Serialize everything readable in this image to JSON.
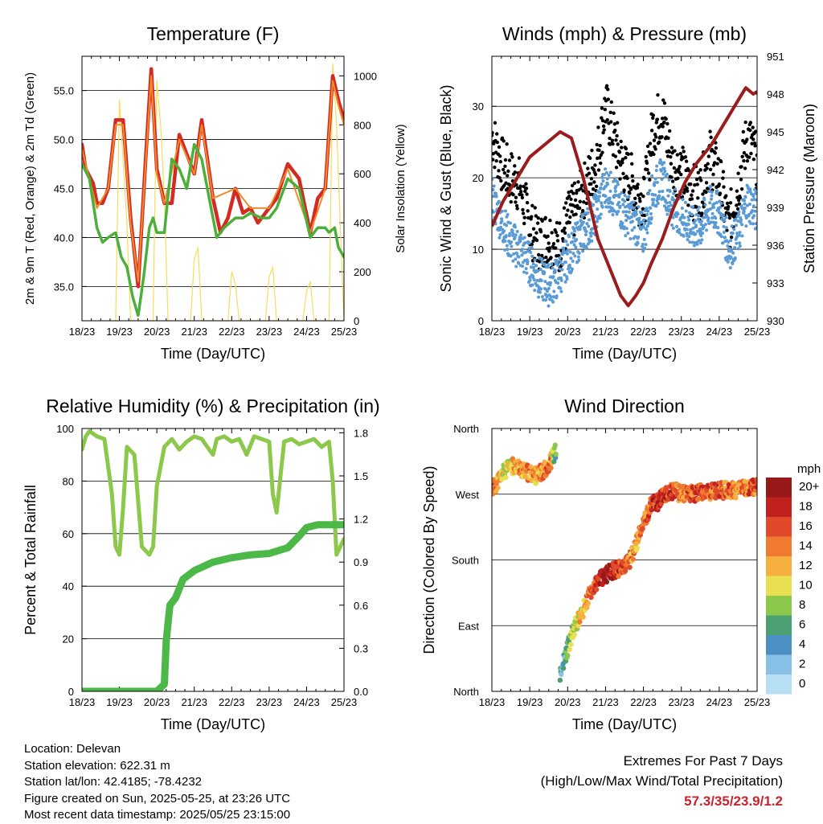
{
  "panels": {
    "temperature": {
      "title": "Temperature (F)",
      "ylabel_left": "2m & 9m T (Red, Orange) & 2m Td (Green)",
      "ylabel_right": "Solar Insolation (Yellow)",
      "xlabel": "Time (Day/UTC)"
    },
    "winds": {
      "title": "Winds (mph) & Pressure (mb)",
      "ylabel_left": "Sonic Wind & Gust (Blue, Black)",
      "ylabel_right": "Station Pressure (Maroon)",
      "xlabel": "Time (Day/UTC)"
    },
    "humidity": {
      "title": "Relative Humidity (%) & Precipitation (in)",
      "ylabel_left": "Percent & Total Rainfall",
      "xlabel": "Time (Day/UTC)"
    },
    "direction": {
      "title": "Wind Direction",
      "ylabel_left": "Direction (Colored By Speed)",
      "xlabel": "Time (Day/UTC)",
      "legend_title": "mph"
    }
  },
  "info": {
    "location": "Location: Delevan",
    "elevation": "Station elevation: 622.31 m",
    "latlon": "Station lat/lon: 42.4185; -78.4232",
    "created": "Figure created on Sun, 2025-05-25, at 23:26 UTC",
    "latest": "Most recent data timestamp: 2025/05/25 23:15:00"
  },
  "extremes": {
    "line1": "Extremes For Past 7 Days",
    "line2": "(High/Low/Max Wind/Total Precipitation)",
    "value": "57.3/35/23.9/1.2"
  },
  "colors": {
    "temp2m": "#d42a22",
    "temp9m": "#f08a2a",
    "dewpoint": "#4caf3a",
    "insolation": "#f5dc5a",
    "wind": "#5a9bd5",
    "gust": "#000000",
    "pressure": "#9b1c1c",
    "rh": "#8cc84b",
    "precip": "#4cb848"
  },
  "chart_data": [
    {
      "type": "line",
      "panel": "temperature",
      "x_ticks": [
        "18/23",
        "19/23",
        "20/23",
        "21/23",
        "22/23",
        "23/23",
        "24/23",
        "25/23"
      ],
      "x_unit": "days since 18/23",
      "y_left_ticks": [
        "35.0",
        "40.0",
        "45.0",
        "50.0",
        "55.0"
      ],
      "ylim_left": [
        31.5,
        58.5
      ],
      "y_right_ticks": [
        "0",
        "200",
        "400",
        "600",
        "800",
        "1000"
      ],
      "ylim_right": [
        0,
        1080
      ],
      "grid": true,
      "series": [
        {
          "role": "temp2m",
          "axis": "left",
          "x": [
            0,
            0.1,
            0.3,
            0.4,
            0.55,
            0.7,
            0.9,
            1.1,
            1.3,
            1.5,
            1.7,
            1.85,
            2.0,
            2.2,
            2.4,
            2.6,
            2.8,
            3.0,
            3.2,
            3.5,
            3.7,
            3.9,
            4.1,
            4.3,
            4.5,
            4.7,
            5.0,
            5.2,
            5.5,
            5.8,
            6.1,
            6.3,
            6.5,
            6.7,
            6.85,
            7.0
          ],
          "y": [
            49.5,
            47,
            45.5,
            43.5,
            43.5,
            45,
            52,
            52,
            42,
            35,
            48,
            57.2,
            47,
            43.5,
            43.5,
            50.5,
            48.5,
            46.5,
            52,
            44,
            40.5,
            42,
            45,
            42.5,
            43,
            41.5,
            43,
            44,
            47.5,
            46,
            40.5,
            44,
            45,
            56.5,
            54,
            52
          ]
        },
        {
          "role": "temp9m",
          "axis": "left",
          "x": [
            0,
            0.4,
            0.7,
            0.9,
            1.1,
            1.3,
            1.5,
            1.7,
            1.85,
            2.0,
            2.2,
            2.6,
            3.0,
            3.2,
            3.5,
            4.1,
            4.5,
            5.0,
            5.5,
            6.1,
            6.5,
            6.7,
            6.85,
            7.0
          ],
          "y": [
            49,
            43,
            45,
            51.5,
            51.5,
            41.5,
            35.5,
            47.5,
            56.5,
            46.5,
            43.5,
            50,
            46.5,
            51.5,
            44,
            45,
            43,
            43,
            47,
            40.5,
            45,
            56,
            53.5,
            51.5
          ]
        },
        {
          "role": "dewpoint",
          "axis": "left",
          "x": [
            0,
            0.2,
            0.4,
            0.55,
            0.7,
            0.9,
            1.05,
            1.2,
            1.35,
            1.5,
            1.65,
            1.8,
            1.9,
            2.0,
            2.2,
            2.4,
            2.6,
            2.8,
            3.0,
            3.2,
            3.4,
            3.6,
            3.8,
            4.1,
            4.3,
            4.5,
            4.8,
            5.0,
            5.2,
            5.5,
            5.8,
            6.1,
            6.3,
            6.5,
            6.6,
            6.75,
            6.85,
            7.0
          ],
          "y": [
            47.5,
            46,
            41,
            39.5,
            40,
            40.5,
            38,
            37,
            34,
            32,
            36,
            41,
            42,
            40.5,
            40.5,
            48,
            47,
            45,
            49.5,
            48,
            44,
            40,
            41,
            42,
            42,
            42.5,
            42,
            42,
            43,
            46,
            45,
            40,
            41,
            41,
            40.5,
            41,
            39,
            38
          ]
        },
        {
          "role": "insolation",
          "axis": "right",
          "x": [
            0.9,
            1.0,
            1.1,
            1.2,
            1.3,
            1.9,
            2.0,
            2.1,
            2.2,
            2.3,
            2.9,
            3.0,
            3.1,
            3.2,
            3.9,
            4.0,
            4.1,
            4.2,
            4.9,
            5.0,
            5.1,
            5.2,
            5.9,
            6.0,
            6.1,
            6.2,
            6.6,
            6.7,
            6.8,
            6.9,
            7.0
          ],
          "y": [
            0,
            900,
            650,
            400,
            0,
            0,
            980,
            800,
            500,
            0,
            0,
            250,
            300,
            0,
            0,
            200,
            150,
            0,
            0,
            180,
            220,
            0,
            0,
            120,
            160,
            0,
            0,
            1050,
            800,
            400,
            0
          ]
        }
      ]
    },
    {
      "type": "scatter",
      "panel": "winds",
      "x_ticks": [
        "18/23",
        "19/23",
        "20/23",
        "21/23",
        "22/23",
        "23/23",
        "24/23",
        "25/23"
      ],
      "x_unit": "days since 18/23",
      "y_left_ticks": [
        "0",
        "10",
        "20",
        "30"
      ],
      "ylim_left": [
        0,
        37
      ],
      "y_right_ticks": [
        "930",
        "933",
        "936",
        "939",
        "942",
        "945",
        "948",
        "951"
      ],
      "ylim_right": [
        930,
        951
      ],
      "grid": true,
      "series": [
        {
          "role": "gust",
          "axis": "left",
          "x": [
            0,
            0.25,
            0.5,
            0.75,
            1.0,
            1.25,
            1.5,
            1.75,
            2.0,
            2.25,
            2.5,
            2.75,
            3.0,
            3.25,
            3.5,
            3.75,
            4.0,
            4.25,
            4.5,
            4.75,
            5.0,
            5.25,
            5.5,
            5.75,
            6.0,
            6.25,
            6.5,
            6.75,
            7.0
          ],
          "y": [
            26,
            22,
            20,
            19,
            13,
            11,
            12,
            10,
            14,
            16,
            19,
            22,
            30,
            25,
            21,
            19,
            16,
            27,
            29,
            22,
            21,
            18,
            18,
            23,
            20,
            13,
            19,
            26,
            22
          ]
        },
        {
          "role": "wind",
          "axis": "left",
          "x": [
            0,
            0.25,
            0.5,
            0.75,
            1.0,
            1.25,
            1.5,
            1.75,
            2.0,
            2.25,
            2.5,
            2.75,
            3.0,
            3.25,
            3.5,
            3.75,
            4.0,
            4.25,
            4.5,
            4.75,
            5.0,
            5.25,
            5.5,
            5.75,
            6.0,
            6.25,
            6.5,
            6.75,
            7.0
          ],
          "y": [
            17,
            14,
            11,
            10,
            8,
            6,
            5,
            6,
            9,
            11,
            13,
            15,
            19,
            17,
            15,
            14,
            12,
            18,
            20,
            16,
            15,
            13,
            13,
            16,
            15,
            10,
            12,
            17,
            15
          ]
        },
        {
          "role": "pressure",
          "axis": "right",
          "x": [
            0,
            0.3,
            0.6,
            1.0,
            1.4,
            1.8,
            2.1,
            2.4,
            2.6,
            2.8,
            3.0,
            3.2,
            3.4,
            3.6,
            3.8,
            4.0,
            4.2,
            4.5,
            4.8,
            5.1,
            5.4,
            5.8,
            6.2,
            6.5,
            6.7,
            6.9,
            7.0
          ],
          "y": [
            937.5,
            939.5,
            941,
            943,
            944,
            945,
            944.5,
            941.5,
            939,
            936.5,
            935,
            933.5,
            932,
            931.2,
            932,
            933,
            934.5,
            936.5,
            939,
            941,
            942.5,
            944,
            946,
            947.5,
            948.5,
            948,
            948.2
          ]
        }
      ]
    },
    {
      "type": "line",
      "panel": "humidity",
      "x_ticks": [
        "18/23",
        "19/23",
        "20/23",
        "21/23",
        "22/23",
        "23/23",
        "24/23",
        "25/23"
      ],
      "x_unit": "days since 18/23",
      "y_left_ticks": [
        "0",
        "20",
        "40",
        "60",
        "80",
        "100"
      ],
      "ylim_left": [
        0,
        100
      ],
      "y_right_ticks": [
        "0.0",
        "0.3",
        "0.6",
        "0.9",
        "1.2",
        "1.5",
        "1.8"
      ],
      "ylim_right": [
        0,
        1.83
      ],
      "grid": true,
      "series": [
        {
          "role": "rh",
          "axis": "left",
          "x": [
            0,
            0.1,
            0.2,
            0.4,
            0.6,
            0.8,
            0.9,
            1.0,
            1.1,
            1.2,
            1.4,
            1.6,
            1.8,
            1.9,
            2.0,
            2.2,
            2.4,
            2.6,
            2.8,
            3.0,
            3.2,
            3.4,
            3.5,
            3.6,
            3.8,
            4.0,
            4.2,
            4.4,
            4.6,
            4.8,
            5.0,
            5.1,
            5.2,
            5.4,
            5.6,
            5.8,
            6.0,
            6.2,
            6.4,
            6.6,
            6.7,
            6.8,
            7.0
          ],
          "y": [
            92,
            97,
            99,
            97,
            96,
            75,
            55,
            52,
            70,
            93,
            90,
            55,
            52,
            55,
            78,
            93,
            96,
            92,
            95,
            97,
            96,
            92,
            90,
            96,
            97,
            95,
            96,
            90,
            97,
            96,
            95,
            75,
            68,
            95,
            96,
            94,
            95,
            96,
            93,
            95,
            80,
            52,
            58
          ]
        },
        {
          "role": "precip",
          "axis": "right",
          "x": [
            0,
            1.0,
            2.0,
            2.2,
            2.25,
            2.35,
            2.5,
            2.7,
            3.0,
            3.5,
            4.0,
            4.5,
            5.0,
            5.5,
            5.8,
            6.0,
            6.3,
            7.0
          ],
          "y": [
            0,
            0,
            0,
            0.05,
            0.35,
            0.6,
            0.65,
            0.78,
            0.84,
            0.9,
            0.93,
            0.95,
            0.96,
            1.0,
            1.08,
            1.14,
            1.16,
            1.16
          ]
        }
      ]
    },
    {
      "type": "scatter",
      "panel": "direction",
      "x_ticks": [
        "18/23",
        "19/23",
        "20/23",
        "21/23",
        "22/23",
        "23/23",
        "24/23",
        "25/23"
      ],
      "x_unit": "days since 18/23",
      "y_ticks": [
        "North",
        "East",
        "South",
        "West",
        "North"
      ],
      "ylim_deg": [
        0,
        360
      ],
      "color_scale_mph": [
        "0",
        "2",
        "4",
        "6",
        "8",
        "10",
        "12",
        "14",
        "16",
        "18",
        "20+"
      ],
      "color_scale_hex": [
        "#b8e0f5",
        "#88c0e8",
        "#4c8fc4",
        "#4aa070",
        "#8cc84b",
        "#e8e050",
        "#f5b040",
        "#f07a30",
        "#e04a2a",
        "#c0201e",
        "#961818"
      ],
      "grid": true,
      "x": [
        0,
        0.3,
        0.6,
        0.9,
        1.2,
        1.5,
        1.7,
        1.8,
        2.0,
        2.2,
        2.4,
        2.6,
        2.8,
        3.0,
        3.2,
        3.4,
        3.6,
        3.8,
        4.0,
        4.2,
        4.4,
        4.6,
        4.8,
        5.0,
        5.5,
        6.0,
        6.5,
        7.0
      ],
      "dir_deg": [
        275,
        300,
        310,
        300,
        295,
        310,
        330,
        20,
        60,
        90,
        110,
        135,
        150,
        160,
        165,
        170,
        175,
        200,
        230,
        255,
        260,
        270,
        275,
        270,
        272,
        275,
        276,
        280
      ],
      "speed": [
        16,
        10,
        12,
        14,
        12,
        15,
        6,
        4,
        6,
        10,
        12,
        14,
        18,
        20,
        18,
        16,
        14,
        12,
        14,
        16,
        18,
        17,
        16,
        14,
        16,
        15,
        14,
        16
      ]
    }
  ]
}
